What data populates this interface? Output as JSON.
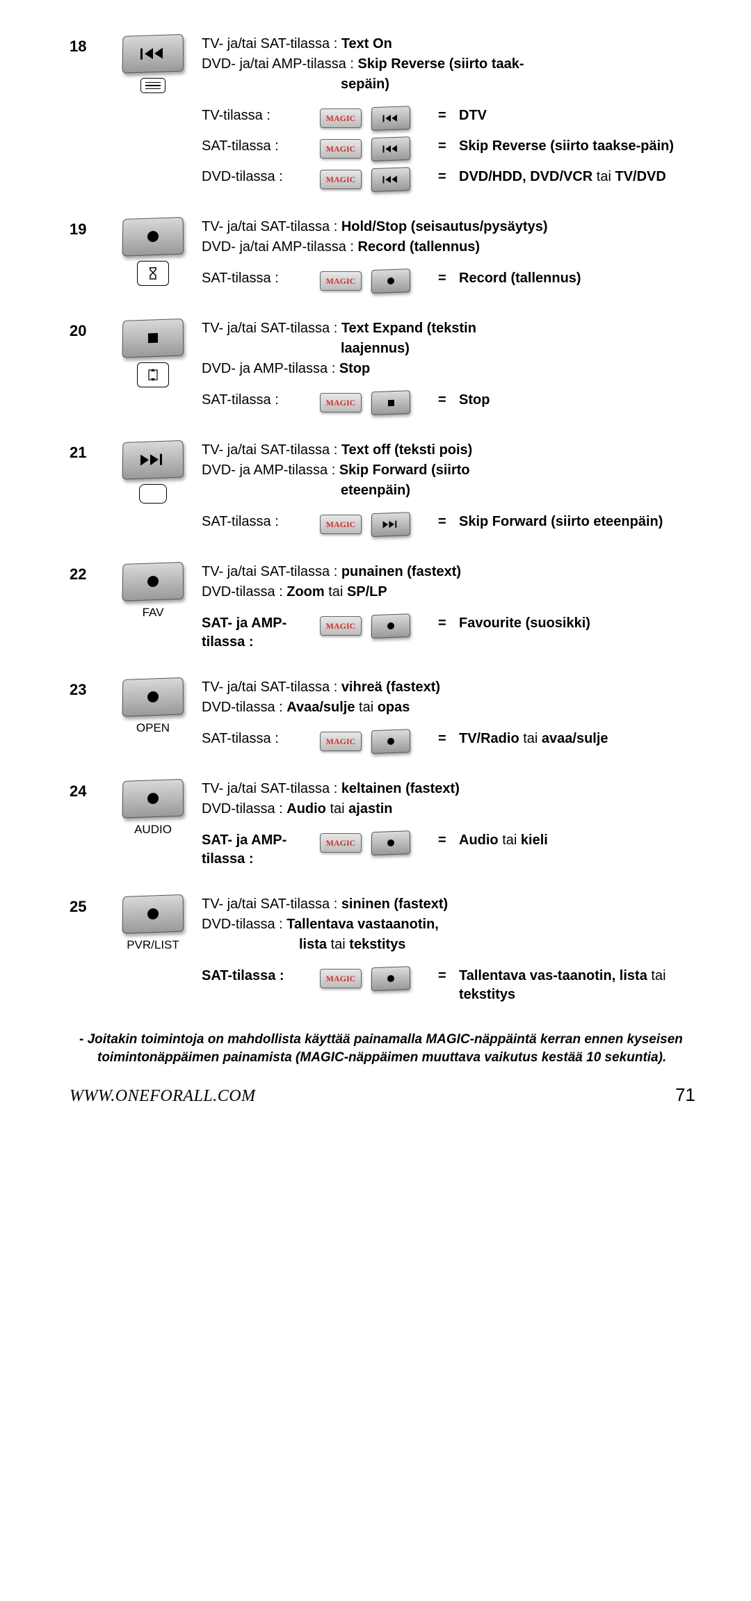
{
  "page": {
    "number": "71",
    "url": "WWW.ONEFORALL.COM"
  },
  "colors": {
    "background": "#ffffff",
    "text": "#000000",
    "btn_grad_top": "#d8d8d8",
    "btn_grad_bottom": "#9a9a9a",
    "magic_text": "#d03030"
  },
  "magic_label": "MAGIC",
  "entries": [
    {
      "num": "18",
      "main_icon": "skip-reverse",
      "sub_icon": "menu-lines",
      "lines": [
        {
          "pre": "TV- ja/tai SAT-tilassa : ",
          "bold": "Text On"
        },
        {
          "pre": "DVD- ja/tai AMP-tilassa : ",
          "bold": "Skip Reverse (siirto taak-"
        },
        {
          "ind_bold": "sepäin)"
        }
      ],
      "combos": [
        {
          "label": "TV-tilassa :",
          "combo_icon": "skip-reverse",
          "eq": "=",
          "res_bold": "DTV"
        },
        {
          "label": "SAT-tilassa :",
          "combo_icon": "skip-reverse",
          "eq": "=",
          "res_bold": "Skip Reverse (siirto taakse-päin)"
        },
        {
          "label": "DVD-tilassa :",
          "combo_icon": "skip-reverse",
          "eq": "=",
          "res_bold": "DVD/HDD, DVD/VCR",
          "res_tail": " tai ",
          "res_bold2": "TV/DVD"
        }
      ]
    },
    {
      "num": "19",
      "main_icon": "dot",
      "sub_icon": "hourglass",
      "lines": [
        {
          "pre": "TV- ja/tai SAT-tilassa : ",
          "bold": "Hold/Stop (seisautus/pysäytys)"
        },
        {
          "pre": "DVD- ja/tai AMP-tilassa : ",
          "bold": "Record (tallennus)"
        }
      ],
      "combos": [
        {
          "label": "SAT-tilassa :",
          "combo_icon": "dot",
          "eq": "=",
          "res_bold": "Record (tallennus)"
        }
      ]
    },
    {
      "num": "20",
      "main_icon": "square",
      "sub_icon": "expand-arrows",
      "lines": [
        {
          "pre": "TV- ja/tai SAT-tilassa : ",
          "bold": "Text Expand (tekstin"
        },
        {
          "ind_bold": "laajennus)"
        },
        {
          "pre": "DVD- ja AMP-tilassa : ",
          "bold": "Stop"
        }
      ],
      "combos": [
        {
          "label": "SAT-tilassa :",
          "combo_icon": "square",
          "eq": "=",
          "res_bold": "Stop"
        }
      ]
    },
    {
      "num": "21",
      "main_icon": "skip-forward",
      "sub_icon": "empty-rounded",
      "lines": [
        {
          "pre": "TV- ja/tai SAT-tilassa : ",
          "bold": "Text off (teksti pois)"
        },
        {
          "pre": "DVD- ja AMP-tilassa : ",
          "bold": "Skip Forward (siirto"
        },
        {
          "ind_bold": "eteenpäin)"
        }
      ],
      "combos": [
        {
          "label": "SAT-tilassa :",
          "combo_icon": "skip-forward",
          "eq": "=",
          "res_bold": "Skip Forward (siirto eteenpäin)"
        }
      ]
    },
    {
      "num": "22",
      "main_icon": "dot",
      "icon_label": "FAV",
      "lines": [
        {
          "pre": "TV- ja/tai SAT-tilassa : ",
          "bold": "punainen (fastext)"
        },
        {
          "pre": "DVD-tilassa : ",
          "bold": "Zoom",
          "tail": " tai ",
          "bold2": "SP/LP"
        }
      ],
      "combos": [
        {
          "label_bold": "SAT- ja AMP-tilassa :",
          "combo_icon": "dot",
          "eq": "=",
          "res_bold": "Favourite (suosikki)"
        }
      ]
    },
    {
      "num": "23",
      "main_icon": "dot",
      "icon_label": "OPEN",
      "lines": [
        {
          "pre": "TV- ja/tai SAT-tilassa : ",
          "bold": "vihreä (fastext)"
        },
        {
          "pre": "DVD-tilassa : ",
          "bold": "Avaa/sulje",
          "tail": " tai ",
          "bold2": "opas"
        }
      ],
      "combos": [
        {
          "label": "SAT-tilassa :",
          "combo_icon": "dot",
          "eq": "=",
          "res_bold": "TV/Radio",
          "res_tail": " tai ",
          "res_bold2": "avaa/sulje"
        }
      ]
    },
    {
      "num": "24",
      "main_icon": "dot",
      "icon_label": "AUDIO",
      "lines": [
        {
          "pre": "TV- ja/tai SAT-tilassa : ",
          "bold": "keltainen (fastext)"
        },
        {
          "pre": "DVD-tilassa : ",
          "bold": "Audio",
          "tail": " tai ",
          "bold2": "ajastin"
        }
      ],
      "combos": [
        {
          "label_bold": "SAT- ja AMP-tilassa :",
          "combo_icon": "dot",
          "eq": "=",
          "res_bold": "Audio",
          "res_tail": " tai ",
          "res_bold2": "kieli"
        }
      ]
    },
    {
      "num": "25",
      "main_icon": "dot",
      "icon_label": "PVR/LIST",
      "lines": [
        {
          "pre": "TV- ja/tai SAT-tilassa : ",
          "bold": "sininen (fastext)"
        },
        {
          "pre": "DVD-tilassa : ",
          "bold": "Tallentava vastaanotin,"
        },
        {
          "ind_bold_tail": "lista",
          "ind_tail": " tai ",
          "ind_bold2": "tekstitys"
        }
      ],
      "combos": [
        {
          "label_bold": "SAT-tilassa :",
          "combo_icon": "dot",
          "eq": "=",
          "res_bold": "Tallentava vas-taanotin, lista",
          "res_tail": " tai ",
          "res_bold2": "tekstitys"
        }
      ]
    }
  ],
  "note": "-   Joitakin toimintoja on mahdollista käyttää painamalla MAGIC-näppäintä kerran ennen kyseisen toimintonäppäimen painamista (MAGIC-näppäimen muuttava vaikutus kestää 10 sekuntia)."
}
